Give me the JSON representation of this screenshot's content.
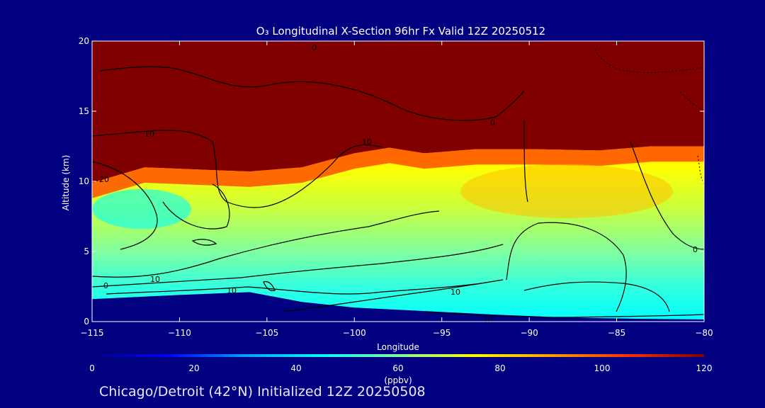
{
  "chart_data": {
    "type": "heatmap",
    "title": "O₃ Longitudinal X-Section 96hr  Fx Valid 12Z 20250512",
    "xlabel": "Longitude",
    "ylabel": "Altitude (km)",
    "xlim": [
      -115,
      -80
    ],
    "ylim": [
      0,
      20
    ],
    "x_ticks": [
      -115,
      -110,
      -105,
      -100,
      -95,
      -90,
      -85,
      -80
    ],
    "x_tick_labels": [
      "−115",
      "−110",
      "−105",
      "−100",
      "−95",
      "−90",
      "−85",
      "−80"
    ],
    "y_ticks": [
      0,
      5,
      10,
      15,
      20
    ],
    "y_tick_labels": [
      "0",
      "5",
      "10",
      "15",
      "20"
    ],
    "colorbar": {
      "label": "(ppbv)",
      "range": [
        0,
        120
      ],
      "ticks": [
        0,
        20,
        40,
        60,
        80,
        100,
        120
      ],
      "tick_labels": [
        "0",
        "20",
        "40",
        "60",
        "80",
        "100",
        "120"
      ],
      "colors": [
        "#000080",
        "#0000ff",
        "#00a0ff",
        "#00ffff",
        "#80ffa0",
        "#ffff00",
        "#ffa000",
        "#ff3000",
        "#800000"
      ]
    },
    "contour_labels": [
      "0",
      "10",
      "20"
    ],
    "grid": false,
    "surface_altitude_km": [
      [
        -115,
        1.6
      ],
      [
        -110,
        1.9
      ],
      [
        -106,
        2.1
      ],
      [
        -103,
        1.4
      ],
      [
        -100,
        1.0
      ],
      [
        -96,
        0.75
      ],
      [
        -92,
        0.5
      ],
      [
        -88,
        0.3
      ],
      [
        -84,
        0.2
      ],
      [
        -80,
        0.15
      ]
    ],
    "tropopause_altitude_km": [
      [
        -115,
        9.9
      ],
      [
        -112,
        11.0
      ],
      [
        -108,
        10.8
      ],
      [
        -106,
        10.7
      ],
      [
        -103,
        11.0
      ],
      [
        -100,
        12.0
      ],
      [
        -98,
        12.4
      ],
      [
        -96,
        12.0
      ],
      [
        -93,
        12.3
      ],
      [
        -90,
        12.3
      ],
      [
        -86,
        12.2
      ],
      [
        -83,
        12.5
      ],
      [
        -80,
        12.5
      ]
    ]
  },
  "footer": "Chicago/Detroit (42°N) Initialized 12Z 20250508"
}
